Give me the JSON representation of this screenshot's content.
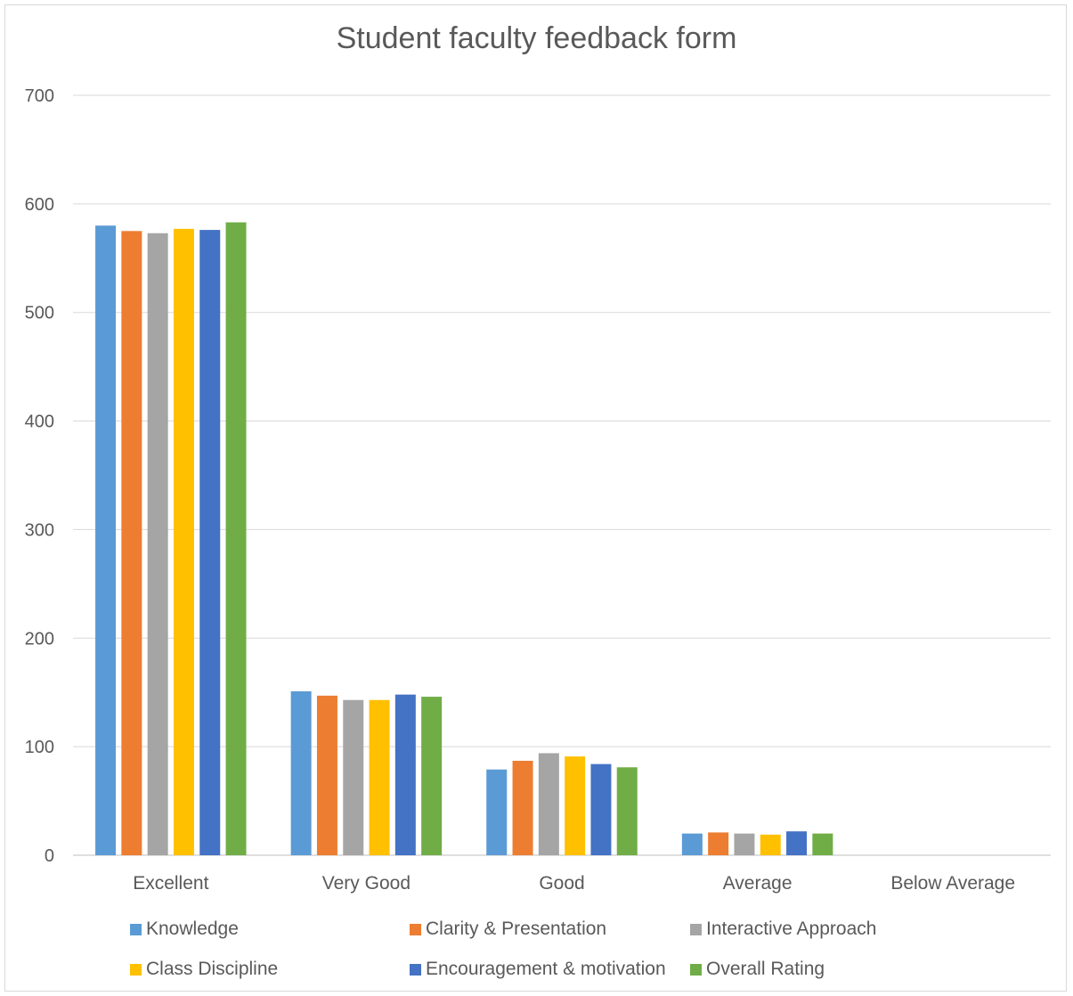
{
  "chart_data": {
    "type": "bar",
    "title": "Student faculty feedback form",
    "categories": [
      "Excellent",
      "Very Good",
      "Good",
      "Average",
      "Below Average"
    ],
    "ylim": [
      0,
      700
    ],
    "yticks": [
      0,
      100,
      200,
      300,
      400,
      500,
      600,
      700
    ],
    "grid": true,
    "legend_position": "bottom",
    "series": [
      {
        "name": "Knowledge",
        "color": "#5b9bd5",
        "values": [
          580,
          151,
          79,
          20,
          0
        ]
      },
      {
        "name": "Clarity & Presentation",
        "color": "#ed7d31",
        "values": [
          575,
          147,
          87,
          21,
          0
        ]
      },
      {
        "name": "Interactive Approach",
        "color": "#a5a5a5",
        "values": [
          573,
          143,
          94,
          20,
          0
        ]
      },
      {
        "name": "Class Discipline",
        "color": "#ffc000",
        "values": [
          577,
          143,
          91,
          19,
          0
        ]
      },
      {
        "name": "Encouragement & motivation",
        "color": "#4472c4",
        "values": [
          576,
          148,
          84,
          22,
          0
        ]
      },
      {
        "name": "Overall Rating",
        "color": "#70ad47",
        "values": [
          583,
          146,
          81,
          20,
          0
        ]
      }
    ]
  }
}
